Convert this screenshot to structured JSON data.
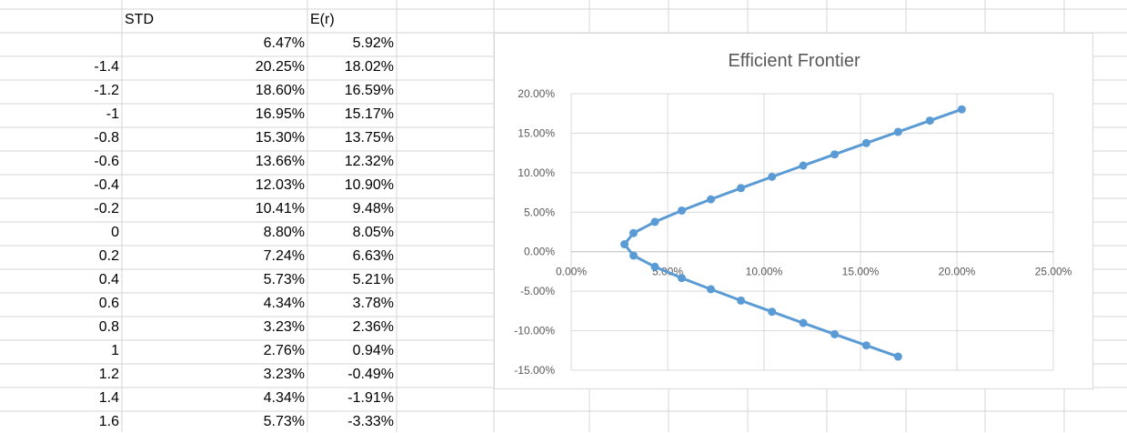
{
  "spreadsheet": {
    "headers": {
      "std": "STD",
      "er": "E(r)"
    },
    "rows": [
      {
        "w": "",
        "std": "6.47%",
        "er": "5.92%"
      },
      {
        "w": "-1.4",
        "std": "20.25%",
        "er": "18.02%"
      },
      {
        "w": "-1.2",
        "std": "18.60%",
        "er": "16.59%"
      },
      {
        "w": "-1",
        "std": "16.95%",
        "er": "15.17%"
      },
      {
        "w": "-0.8",
        "std": "15.30%",
        "er": "13.75%"
      },
      {
        "w": "-0.6",
        "std": "13.66%",
        "er": "12.32%"
      },
      {
        "w": "-0.4",
        "std": "12.03%",
        "er": "10.90%"
      },
      {
        "w": "-0.2",
        "std": "10.41%",
        "er": "9.48%"
      },
      {
        "w": "0",
        "std": "8.80%",
        "er": "8.05%"
      },
      {
        "w": "0.2",
        "std": "7.24%",
        "er": "6.63%"
      },
      {
        "w": "0.4",
        "std": "5.73%",
        "er": "5.21%"
      },
      {
        "w": "0.6",
        "std": "4.34%",
        "er": "3.78%"
      },
      {
        "w": "0.8",
        "std": "3.23%",
        "er": "2.36%"
      },
      {
        "w": "1",
        "std": "2.76%",
        "er": "0.94%"
      },
      {
        "w": "1.2",
        "std": "3.23%",
        "er": "-0.49%"
      },
      {
        "w": "1.4",
        "std": "4.34%",
        "er": "-1.91%"
      },
      {
        "w": "1.6",
        "std": "5.73%",
        "er": "-3.33%"
      }
    ]
  },
  "chart_data": {
    "type": "scatter",
    "title": "Efficient Frontier",
    "xlabel": "",
    "ylabel": "",
    "xlim": [
      0,
      25
    ],
    "ylim": [
      -15,
      20
    ],
    "x_ticks": [
      0,
      5,
      10,
      15,
      20,
      25
    ],
    "y_ticks": [
      -15,
      -10,
      -5,
      0,
      5,
      10,
      15,
      20
    ],
    "x_tick_labels": [
      "0.00%",
      "5.00%",
      "10.00%",
      "15.00%",
      "20.00%",
      "25.00%"
    ],
    "y_tick_labels": [
      "-15.00%",
      "-10.00%",
      "-5.00%",
      "0.00%",
      "5.00%",
      "10.00%",
      "15.00%",
      "20.00%"
    ],
    "grid": true,
    "legend": "none",
    "series": [
      {
        "color": "#5b9bd5",
        "points": [
          [
            20.25,
            18.02
          ],
          [
            18.6,
            16.59
          ],
          [
            16.95,
            15.17
          ],
          [
            15.3,
            13.75
          ],
          [
            13.66,
            12.32
          ],
          [
            12.03,
            10.9
          ],
          [
            10.41,
            9.48
          ],
          [
            8.8,
            8.05
          ],
          [
            7.24,
            6.63
          ],
          [
            5.73,
            5.21
          ],
          [
            4.34,
            3.78
          ],
          [
            3.23,
            2.36
          ],
          [
            2.76,
            0.94
          ],
          [
            3.23,
            -0.49
          ],
          [
            4.34,
            -1.91
          ],
          [
            5.73,
            -3.33
          ],
          [
            7.24,
            -4.75
          ],
          [
            8.8,
            -6.18
          ],
          [
            10.41,
            -7.6
          ],
          [
            12.03,
            -9.02
          ],
          [
            13.66,
            -10.44
          ],
          [
            15.3,
            -11.86
          ],
          [
            16.95,
            -13.28
          ]
        ]
      }
    ]
  }
}
